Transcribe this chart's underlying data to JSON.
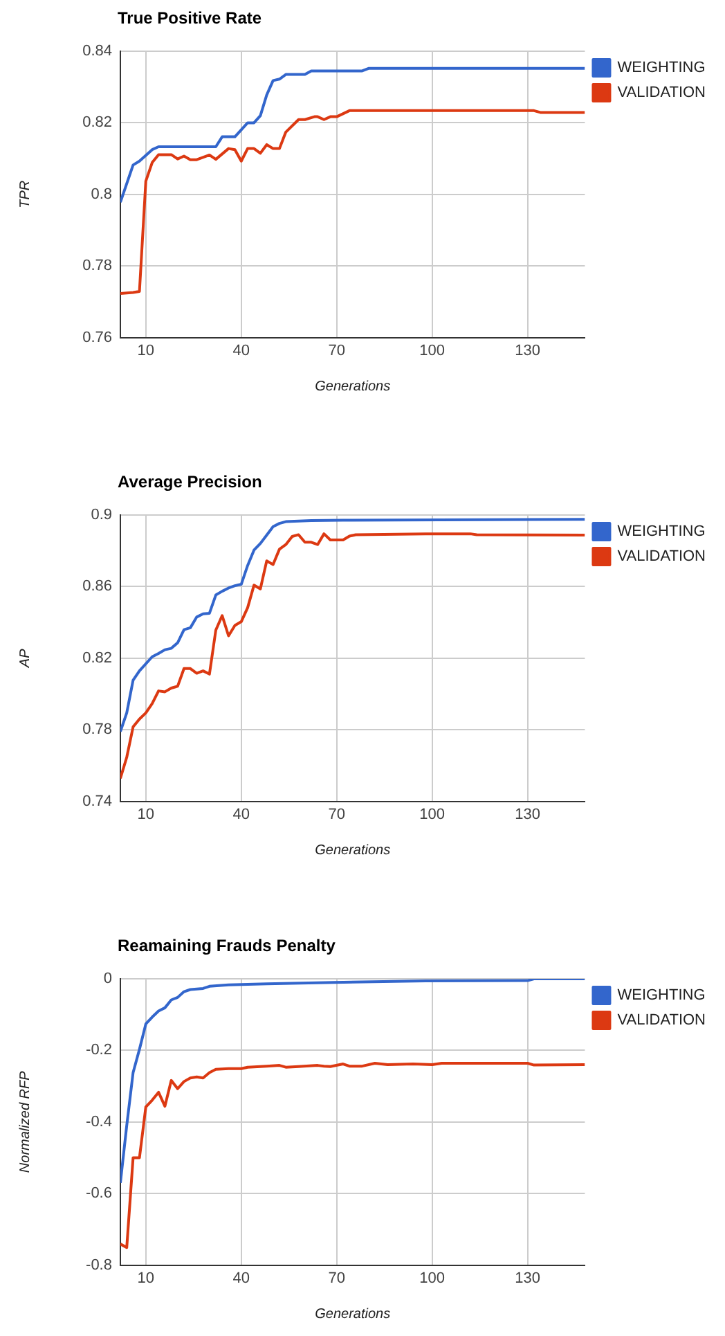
{
  "chart_data": [
    {
      "type": "line",
      "title": "True Positive Rate",
      "xlabel": "Generations",
      "ylabel": "TPR",
      "xlim": [
        2,
        148
      ],
      "xticks": [
        10,
        40,
        70,
        100,
        130
      ],
      "ylim": [
        0.76,
        0.84
      ],
      "yticks": [
        0.76,
        0.78,
        0.8,
        0.82,
        0.84
      ],
      "grid": true,
      "legend": "top right",
      "series": [
        {
          "name": "WEIGHTING",
          "color": "#3366cc",
          "x": [
            2,
            6,
            8,
            12,
            14,
            32,
            34,
            38,
            42,
            44,
            46,
            48,
            50,
            52,
            54,
            60,
            62,
            78,
            80,
            148
          ],
          "values": [
            0.7978,
            0.8082,
            0.8093,
            0.8125,
            0.8133,
            0.8133,
            0.8161,
            0.8161,
            0.82,
            0.82,
            0.822,
            0.8278,
            0.8318,
            0.8322,
            0.8335,
            0.8335,
            0.8345,
            0.8345,
            0.8352,
            0.8352
          ]
        },
        {
          "name": "VALIDATION",
          "color": "#dc3912",
          "x": [
            2,
            6,
            8,
            10,
            12,
            14,
            18,
            20,
            22,
            24,
            26,
            30,
            32,
            36,
            38,
            40,
            42,
            44,
            46,
            48,
            50,
            52,
            54,
            58,
            60,
            63,
            64,
            66,
            68,
            70,
            74,
            132,
            134,
            148
          ],
          "values": [
            0.7723,
            0.7726,
            0.7729,
            0.8037,
            0.8089,
            0.8111,
            0.8111,
            0.8099,
            0.8107,
            0.8097,
            0.8097,
            0.811,
            0.8098,
            0.8128,
            0.8125,
            0.8093,
            0.8128,
            0.8128,
            0.8115,
            0.8139,
            0.8128,
            0.8128,
            0.8174,
            0.8209,
            0.8209,
            0.8217,
            0.8217,
            0.8209,
            0.8217,
            0.8217,
            0.8234,
            0.8234,
            0.8229,
            0.8229
          ]
        }
      ]
    },
    {
      "type": "line",
      "title": "Average Precision",
      "xlabel": "Generations",
      "ylabel": "AP",
      "xlim": [
        2,
        148
      ],
      "xticks": [
        10,
        40,
        70,
        100,
        130
      ],
      "ylim": [
        0.74,
        0.9
      ],
      "yticks": [
        0.74,
        0.78,
        0.82,
        0.86,
        0.9
      ],
      "grid": true,
      "legend": "top right",
      "series": [
        {
          "name": "WEIGHTING",
          "color": "#3366cc",
          "x": [
            2,
            4,
            6,
            8,
            12,
            14,
            16,
            18,
            20,
            22,
            24,
            26,
            28,
            30,
            32,
            34,
            36,
            38,
            40,
            42,
            44,
            46,
            48,
            50,
            52,
            54,
            62,
            72,
            148
          ],
          "values": [
            0.779,
            0.7894,
            0.8077,
            0.8129,
            0.8208,
            0.8226,
            0.8247,
            0.8255,
            0.8286,
            0.8359,
            0.837,
            0.843,
            0.8448,
            0.8451,
            0.8553,
            0.8574,
            0.8592,
            0.8605,
            0.8613,
            0.8718,
            0.8804,
            0.8841,
            0.8888,
            0.8935,
            0.8953,
            0.8963,
            0.8969,
            0.8971,
            0.8976
          ]
        },
        {
          "name": "VALIDATION",
          "color": "#dc3912",
          "x": [
            2,
            4,
            6,
            8,
            10,
            12,
            14,
            16,
            18,
            20,
            22,
            24,
            26,
            28,
            30,
            32,
            34,
            36,
            38,
            40,
            42,
            44,
            46,
            48,
            50,
            52,
            54,
            56,
            58,
            60,
            62,
            64,
            66,
            68,
            72,
            74,
            76,
            98,
            112,
            114,
            148
          ],
          "values": [
            0.7528,
            0.7646,
            0.7816,
            0.786,
            0.7894,
            0.7946,
            0.8017,
            0.8012,
            0.8033,
            0.8043,
            0.8142,
            0.8142,
            0.8116,
            0.8129,
            0.8111,
            0.8357,
            0.8438,
            0.8325,
            0.8383,
            0.8404,
            0.8482,
            0.8608,
            0.8587,
            0.8744,
            0.8723,
            0.8809,
            0.8835,
            0.888,
            0.889,
            0.8848,
            0.8848,
            0.8835,
            0.8895,
            0.8861,
            0.8861,
            0.8882,
            0.889,
            0.8895,
            0.8895,
            0.889,
            0.8888
          ]
        }
      ]
    },
    {
      "type": "line",
      "title": "Reamaining Frauds Penalty",
      "xlabel": "Generations",
      "ylabel": "Normalized RFP",
      "xlim": [
        2,
        148
      ],
      "xticks": [
        10,
        40,
        70,
        100,
        130
      ],
      "ylim": [
        -0.8,
        0
      ],
      "yticks": [
        -0.8,
        -0.6,
        -0.4,
        -0.2,
        0
      ],
      "grid": true,
      "legend": "top right",
      "series": [
        {
          "name": "WEIGHTING",
          "color": "#3366cc",
          "x": [
            2,
            4,
            6,
            8,
            10,
            12,
            14,
            16,
            18,
            20,
            22,
            24,
            28,
            30,
            36,
            48,
            69,
            98,
            130,
            132,
            148
          ],
          "values": [
            -0.57,
            -0.41,
            -0.262,
            -0.197,
            -0.126,
            -0.107,
            -0.09,
            -0.081,
            -0.059,
            -0.052,
            -0.036,
            -0.03,
            -0.027,
            -0.021,
            -0.017,
            -0.014,
            -0.01,
            -0.006,
            -0.005,
            0,
            0
          ]
        },
        {
          "name": "VALIDATION",
          "color": "#dc3912",
          "x": [
            2,
            4,
            6,
            8,
            10,
            12,
            14,
            16,
            18,
            20,
            22,
            24,
            26,
            28,
            30,
            32,
            36,
            40,
            42,
            48,
            52,
            54,
            58,
            64,
            66,
            68,
            72,
            74,
            78,
            82,
            86,
            94,
            100,
            103,
            130,
            132,
            148
          ],
          "values": [
            -0.741,
            -0.751,
            -0.5,
            -0.5,
            -0.358,
            -0.339,
            -0.317,
            -0.356,
            -0.284,
            -0.307,
            -0.287,
            -0.277,
            -0.274,
            -0.277,
            -0.262,
            -0.253,
            -0.251,
            -0.251,
            -0.247,
            -0.244,
            -0.242,
            -0.247,
            -0.245,
            -0.242,
            -0.244,
            -0.245,
            -0.238,
            -0.244,
            -0.244,
            -0.236,
            -0.24,
            -0.238,
            -0.24,
            -0.236,
            -0.236,
            -0.241,
            -0.24
          ]
        }
      ]
    }
  ]
}
